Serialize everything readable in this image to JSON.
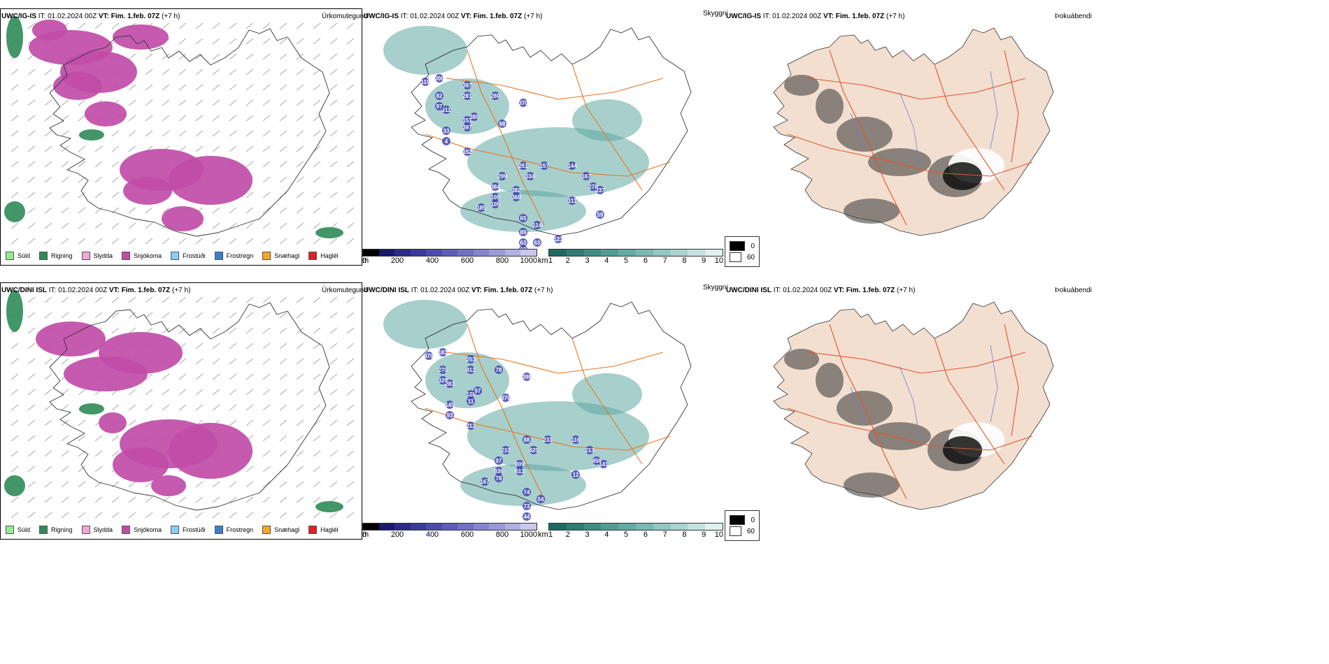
{
  "rows": [
    {
      "model": "UWC/IG-IS",
      "it_label": "IT:",
      "it_value": "01.02.2024 00Z",
      "vt_label": "VT:",
      "vt_value": "Fim. 1.feb. 07Z",
      "lead": "(+7 h)",
      "precip_title": "Úrkomutegund",
      "vis_title": "Skyggni",
      "fog_title": "Þokuábendi"
    },
    {
      "model": "UWC/DINI ISL",
      "it_label": "IT:",
      "it_value": "01.02.2024 00Z",
      "vt_label": "VT:",
      "vt_value": "Fim. 1.feb. 07Z",
      "lead": "(+7 h)",
      "precip_title": "Úrkomutegund",
      "vis_title": "Skyggni",
      "fog_title": "Þokuábendi"
    }
  ],
  "precip_legend": [
    {
      "label": "Súld",
      "color": "#90ee90"
    },
    {
      "label": "Rigning",
      "color": "#2e8b57"
    },
    {
      "label": "Slydda",
      "color": "#f4a6d7"
    },
    {
      "label": "Snjókoma",
      "color": "#c04ca8"
    },
    {
      "label": "Frostúði",
      "color": "#87cefa"
    },
    {
      "label": "Frostregn",
      "color": "#3a7fcf"
    },
    {
      "label": "Snæhagl",
      "color": "#f5a623"
    },
    {
      "label": "Haglél",
      "color": "#e02020"
    }
  ],
  "ceiling_bar": {
    "unit": "m",
    "ticks": [
      "0",
      "200",
      "400",
      "600",
      "800",
      "1000"
    ],
    "colors": [
      "#000000",
      "#191970",
      "#2b2b8c",
      "#3a3a9e",
      "#4b4bae",
      "#5c5cba",
      "#7070c4",
      "#8585cf",
      "#9a9ad8",
      "#b0b0e2",
      "#c8c8ec"
    ]
  },
  "vis_bar": {
    "unit": "km",
    "ticks": [
      "1",
      "2",
      "3",
      "4",
      "5",
      "6",
      "7",
      "8",
      "9",
      "10"
    ],
    "colors": [
      "#1e6b63",
      "#2f7d75",
      "#3f8e86",
      "#519d96",
      "#64aba5",
      "#7ab9b3",
      "#91c7c2",
      "#aad4d0",
      "#c4e2df",
      "#dff0ee"
    ]
  },
  "fog_legend": [
    {
      "label": "0",
      "color": "#000000"
    },
    {
      "label": "60",
      "color": "#ffffff"
    }
  ],
  "ceiling_labels": [
    [
      "300",
      "397",
      "82",
      "280",
      "370",
      "311",
      "119",
      "281",
      "97",
      "151",
      "33",
      "385",
      "98",
      "397",
      "4",
      "152",
      "251",
      "157",
      "144",
      "167",
      "299",
      "334",
      "237",
      "278",
      "384",
      "382",
      "109",
      "311",
      "185",
      "105",
      "368",
      "65",
      "114",
      "89",
      "63",
      "62",
      "63",
      "123",
      "59"
    ],
    [
      "181",
      "253",
      "270",
      "78",
      "398",
      "283",
      "470",
      "412",
      "329",
      "128",
      "145",
      "97",
      "370",
      "11",
      "93",
      "212",
      "88",
      "233",
      "116",
      "213",
      "210",
      "425",
      "141",
      "456",
      "97",
      "809",
      "836",
      "12",
      "167",
      "78",
      "613",
      "74",
      "54",
      "73",
      "44"
    ]
  ],
  "colors": {
    "snow": "#c04ca8",
    "rain": "#2e8b57",
    "vis_teal": "#5fa8a2",
    "ceiling_blue": "#3b3bb0",
    "road_orange": "#e87722",
    "land_fog": "#f2dfd0",
    "river_blue": "#6a7fe0"
  }
}
